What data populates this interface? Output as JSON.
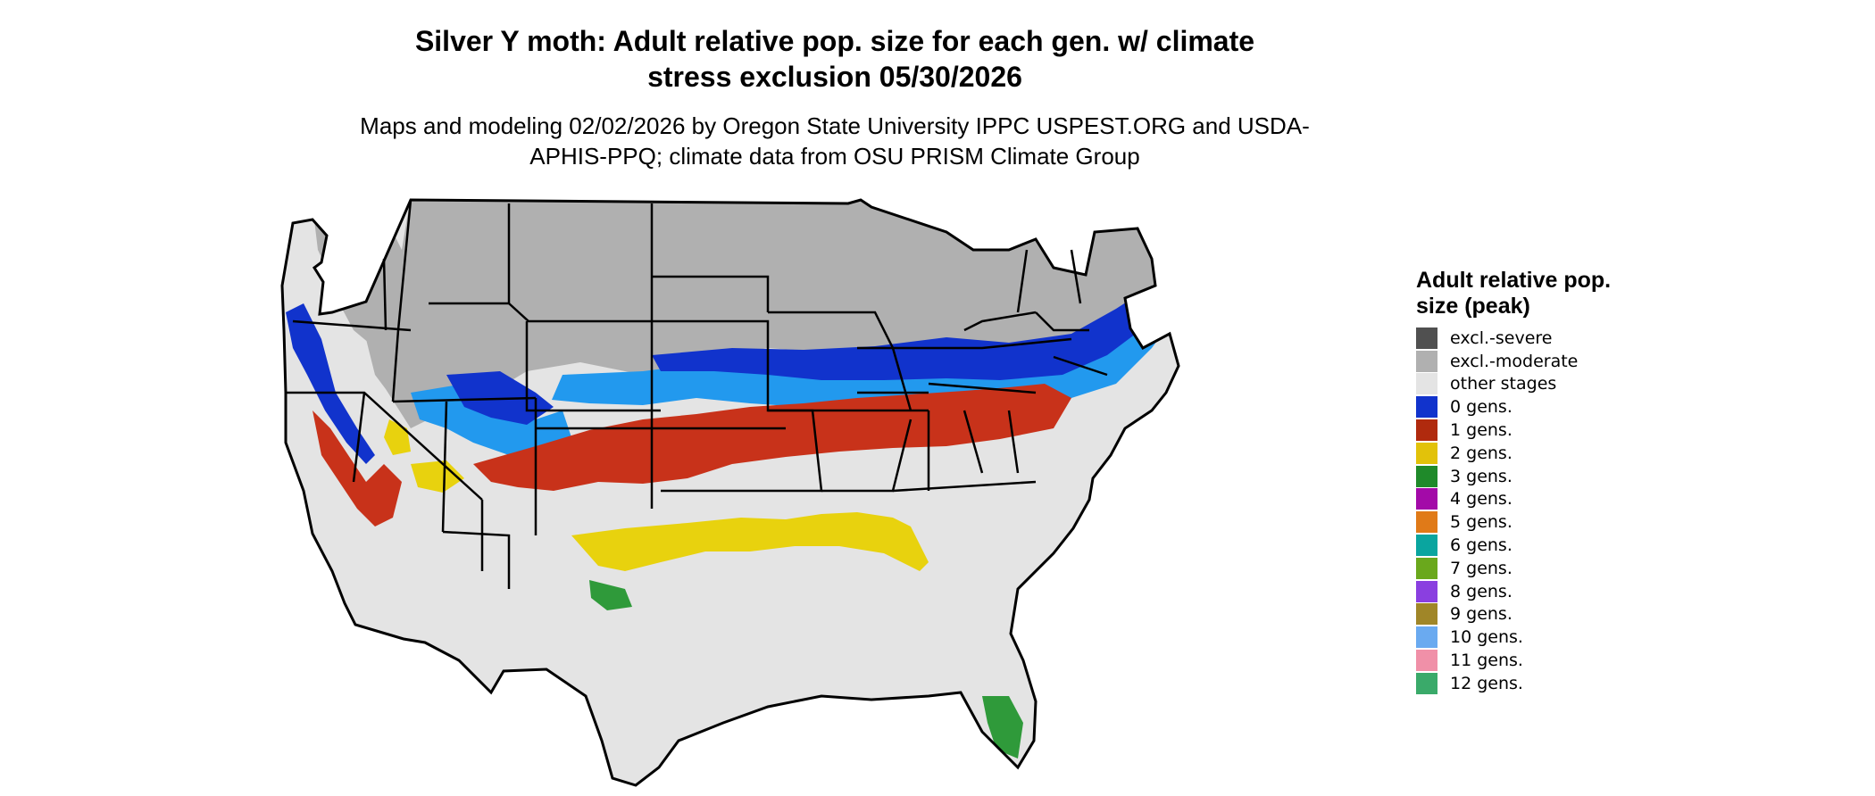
{
  "title": "Silver Y moth: Adult relative pop. size for each gen. w/ climate stress exclusion 05/30/2026",
  "subtitle": "Maps and modeling 02/02/2026 by Oregon State University IPPC USPEST.ORG and USDA-APHIS-PPQ; climate data from OSU PRISM Climate Group",
  "legend": {
    "title": "Adult relative pop. size (peak)",
    "items": [
      {
        "label": "excl.-severe",
        "color": "#505050"
      },
      {
        "label": "excl.-moderate",
        "color": "#b0b0b0"
      },
      {
        "label": "other stages",
        "color": "#e4e4e4"
      },
      {
        "label": "0 gens.",
        "color": "#1133cc"
      },
      {
        "label": "1 gens.",
        "color": "#b02a0e"
      },
      {
        "label": "2 gens.",
        "color": "#e2c20a"
      },
      {
        "label": "3 gens.",
        "color": "#1f8a2a"
      },
      {
        "label": "4 gens.",
        "color": "#a30aa8"
      },
      {
        "label": "5 gens.",
        "color": "#e07a18"
      },
      {
        "label": "6 gens.",
        "color": "#0aa59f"
      },
      {
        "label": "7 gens.",
        "color": "#6aa81c"
      },
      {
        "label": "8 gens.",
        "color": "#8a3fe0"
      },
      {
        "label": "9 gens.",
        "color": "#a08628"
      },
      {
        "label": "10 gens.",
        "color": "#6aaaf0"
      },
      {
        "label": "11 gens.",
        "color": "#f090a8"
      },
      {
        "label": "12 gens.",
        "color": "#3aaa6a"
      }
    ]
  },
  "map_layers": {
    "excluded_moderate": "#b0b0b0",
    "other_stages": "#e4e4e4",
    "zero_gens_dark": "#1133cc",
    "zero_gens_light": "#2299ee",
    "one_gen": "#c8321a",
    "two_gens": "#e8d20e",
    "three_gens": "#2f9a3a",
    "state_border": "#000000"
  }
}
